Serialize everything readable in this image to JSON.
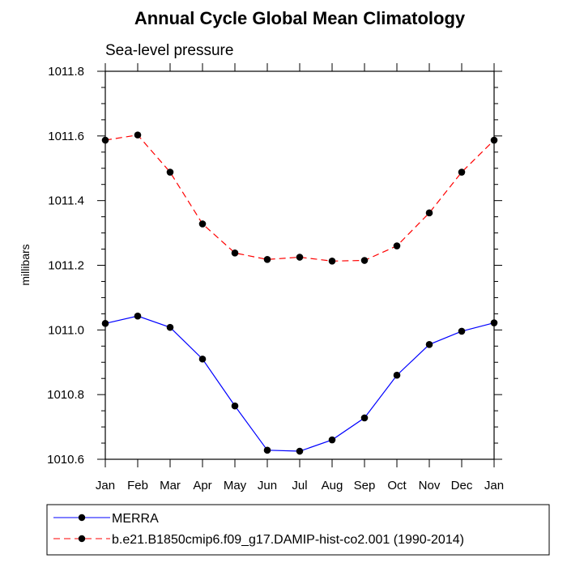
{
  "chart_data": {
    "type": "line",
    "title": "Annual Cycle Global Mean Climatology",
    "subtitle": "Sea-level pressure",
    "xlabel": "",
    "ylabel": "millibars",
    "categories": [
      "Jan",
      "Feb",
      "Mar",
      "Apr",
      "May",
      "Jun",
      "Jul",
      "Aug",
      "Sep",
      "Oct",
      "Nov",
      "Dec",
      "Jan"
    ],
    "ylim": [
      1010.6,
      1011.8
    ],
    "yticks": [
      1010.6,
      1010.8,
      1011.0,
      1011.2,
      1011.4,
      1011.6,
      1011.8
    ],
    "ytick_labels": [
      "1010.6",
      "1010.8",
      "1011.0",
      "1011.2",
      "1011.4",
      "1011.6",
      "1011.8"
    ],
    "grid": false,
    "legend_position": "bottom-left",
    "series": [
      {
        "name": "MERRA",
        "color": "#0000ff",
        "dash": "solid",
        "values": [
          1011.02,
          1011.043,
          1011.008,
          1010.91,
          1010.765,
          1010.628,
          1010.625,
          1010.66,
          1010.728,
          1010.86,
          1010.955,
          1010.996,
          1011.022
        ]
      },
      {
        "name": "b.e21.B1850cmip6.f09_g17.DAMIP-hist-co2.001 (1990-2014)",
        "color": "#ff0000",
        "dash": "dashed",
        "values": [
          1011.587,
          1011.603,
          1011.488,
          1011.328,
          1011.238,
          1011.218,
          1011.225,
          1011.213,
          1011.215,
          1011.26,
          1011.362,
          1011.488,
          1011.587
        ]
      }
    ]
  }
}
